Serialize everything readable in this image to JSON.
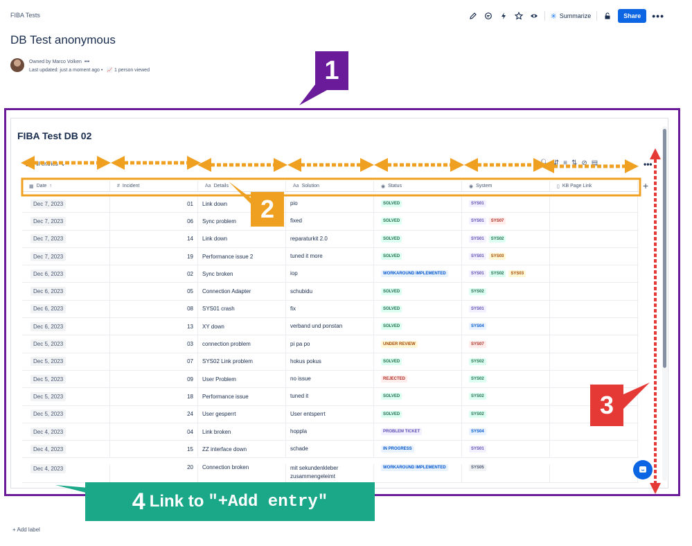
{
  "breadcrumb": "FIBA Tests",
  "toolbar": {
    "summarize": "Summarize",
    "share": "Share",
    "more": "•••"
  },
  "page": {
    "title": "DB Test anonymous",
    "owner": "Owned by Marco Volken",
    "owner_more": "•••",
    "updated": "Last updated: just a moment ago •",
    "viewers": "1 person viewed"
  },
  "database": {
    "title": "FIBA Test DB 02",
    "view": "All entries",
    "columns": [
      "Date",
      "Incident",
      "Details",
      "Solution",
      "Status",
      "System",
      "KB Page Link"
    ],
    "rows": [
      {
        "date": "Dec 7, 2023",
        "incident": "01",
        "details": "Link down",
        "solution": "pio",
        "status": "SOLVED",
        "systems": [
          "SYS01"
        ]
      },
      {
        "date": "Dec 7, 2023",
        "incident": "06",
        "details": "Sync problem",
        "solution": "fixed",
        "status": "SOLVED",
        "systems": [
          "SYS01",
          "SYS07"
        ]
      },
      {
        "date": "Dec 7, 2023",
        "incident": "14",
        "details": "Link down",
        "solution": "reparaturkit 2.0",
        "status": "SOLVED",
        "systems": [
          "SYS01",
          "SYS02"
        ]
      },
      {
        "date": "Dec 7, 2023",
        "incident": "19",
        "details": "Performance issue 2",
        "solution": "tuned it more",
        "status": "SOLVED",
        "systems": [
          "SYS01",
          "SYS03"
        ]
      },
      {
        "date": "Dec 6, 2023",
        "incident": "02",
        "details": "Sync broken",
        "solution": "iop",
        "status": "WORKAROUND IMPLEMENTED",
        "systems": [
          "SYS01",
          "SYS02",
          "SYS03"
        ]
      },
      {
        "date": "Dec 6, 2023",
        "incident": "05",
        "details": "Connection Adapter",
        "solution": "schubidu",
        "status": "SOLVED",
        "systems": [
          "SYS02"
        ]
      },
      {
        "date": "Dec 6, 2023",
        "incident": "08",
        "details": "SYS01 crash",
        "solution": "fix",
        "status": "SOLVED",
        "systems": [
          "SYS01"
        ]
      },
      {
        "date": "Dec 6, 2023",
        "incident": "13",
        "details": "XY down",
        "solution": "verband und ponstan",
        "status": "SOLVED",
        "systems": [
          "SYS04"
        ]
      },
      {
        "date": "Dec 5, 2023",
        "incident": "03",
        "details": "connection problem",
        "solution": "pi pa po",
        "status": "UNDER REVIEW",
        "systems": [
          "SYS07"
        ]
      },
      {
        "date": "Dec 5, 2023",
        "incident": "07",
        "details": "SYS02 Link problem",
        "solution": "hokus pokus",
        "status": "SOLVED",
        "systems": [
          "SYS02"
        ]
      },
      {
        "date": "Dec 5, 2023",
        "incident": "09",
        "details": "User Problem",
        "solution": "no issue",
        "status": "REJECTED",
        "systems": [
          "SYS02"
        ]
      },
      {
        "date": "Dec 5, 2023",
        "incident": "18",
        "details": "Performance issue",
        "solution": "tuned it",
        "status": "SOLVED",
        "systems": [
          "SYS02"
        ]
      },
      {
        "date": "Dec 5, 2023",
        "incident": "24",
        "details": "User gesperrt",
        "solution": "User entsperrt",
        "status": "SOLVED",
        "systems": [
          "SYS02"
        ]
      },
      {
        "date": "Dec 4, 2023",
        "incident": "04",
        "details": "Link broken",
        "solution": "hoppla",
        "status": "PROBLEM TICKET",
        "systems": [
          "SYS04"
        ]
      },
      {
        "date": "Dec 4, 2023",
        "incident": "15",
        "details": "ZZ interface down",
        "solution": "schade",
        "status": "IN PROGRESS",
        "systems": [
          "SYS01"
        ]
      },
      {
        "date": "Dec 4, 2023",
        "incident": "20",
        "details": "Connection broken",
        "solution": "mit sekundenkleber zusammengeleimt",
        "status": "WORKAROUND IMPLEMENTED",
        "systems": [
          "SYS05"
        ]
      }
    ]
  },
  "status_colors": {
    "SOLVED": {
      "bg": "#dcfff1",
      "fg": "#216e4e"
    },
    "WORKAROUND IMPLEMENTED": {
      "bg": "#e9f2ff",
      "fg": "#0055cc"
    },
    "UNDER REVIEW": {
      "bg": "#fff7d6",
      "fg": "#a54800"
    },
    "REJECTED": {
      "bg": "#ffeceb",
      "fg": "#ae2e24"
    },
    "PROBLEM TICKET": {
      "bg": "#f3f0ff",
      "fg": "#5e4db2"
    },
    "IN PROGRESS": {
      "bg": "#e9f2ff",
      "fg": "#0055cc"
    }
  },
  "system_colors": {
    "SYS01": {
      "bg": "#f3f0ff",
      "fg": "#5e4db2"
    },
    "SYS02": {
      "bg": "#dcfff1",
      "fg": "#216e4e"
    },
    "SYS03": {
      "bg": "#fff7d6",
      "fg": "#a54800"
    },
    "SYS04": {
      "bg": "#e9f2ff",
      "fg": "#0055cc"
    },
    "SYS05": {
      "bg": "#f1f2f4",
      "fg": "#44546f"
    },
    "SYS07": {
      "bg": "#ffeceb",
      "fg": "#ae2e24"
    }
  },
  "footer": {
    "add_label": "+ Add label"
  },
  "annotations": {
    "a1": "1",
    "a2": "2",
    "a3": "3",
    "a4_num": "4",
    "a4_text": "Link to",
    "a4_code": "\"+Add entry\""
  },
  "annotation_colors": {
    "purple": "#6a1b9a",
    "orange": "#f0a020",
    "red": "#e53935",
    "teal": "#1aa889"
  }
}
